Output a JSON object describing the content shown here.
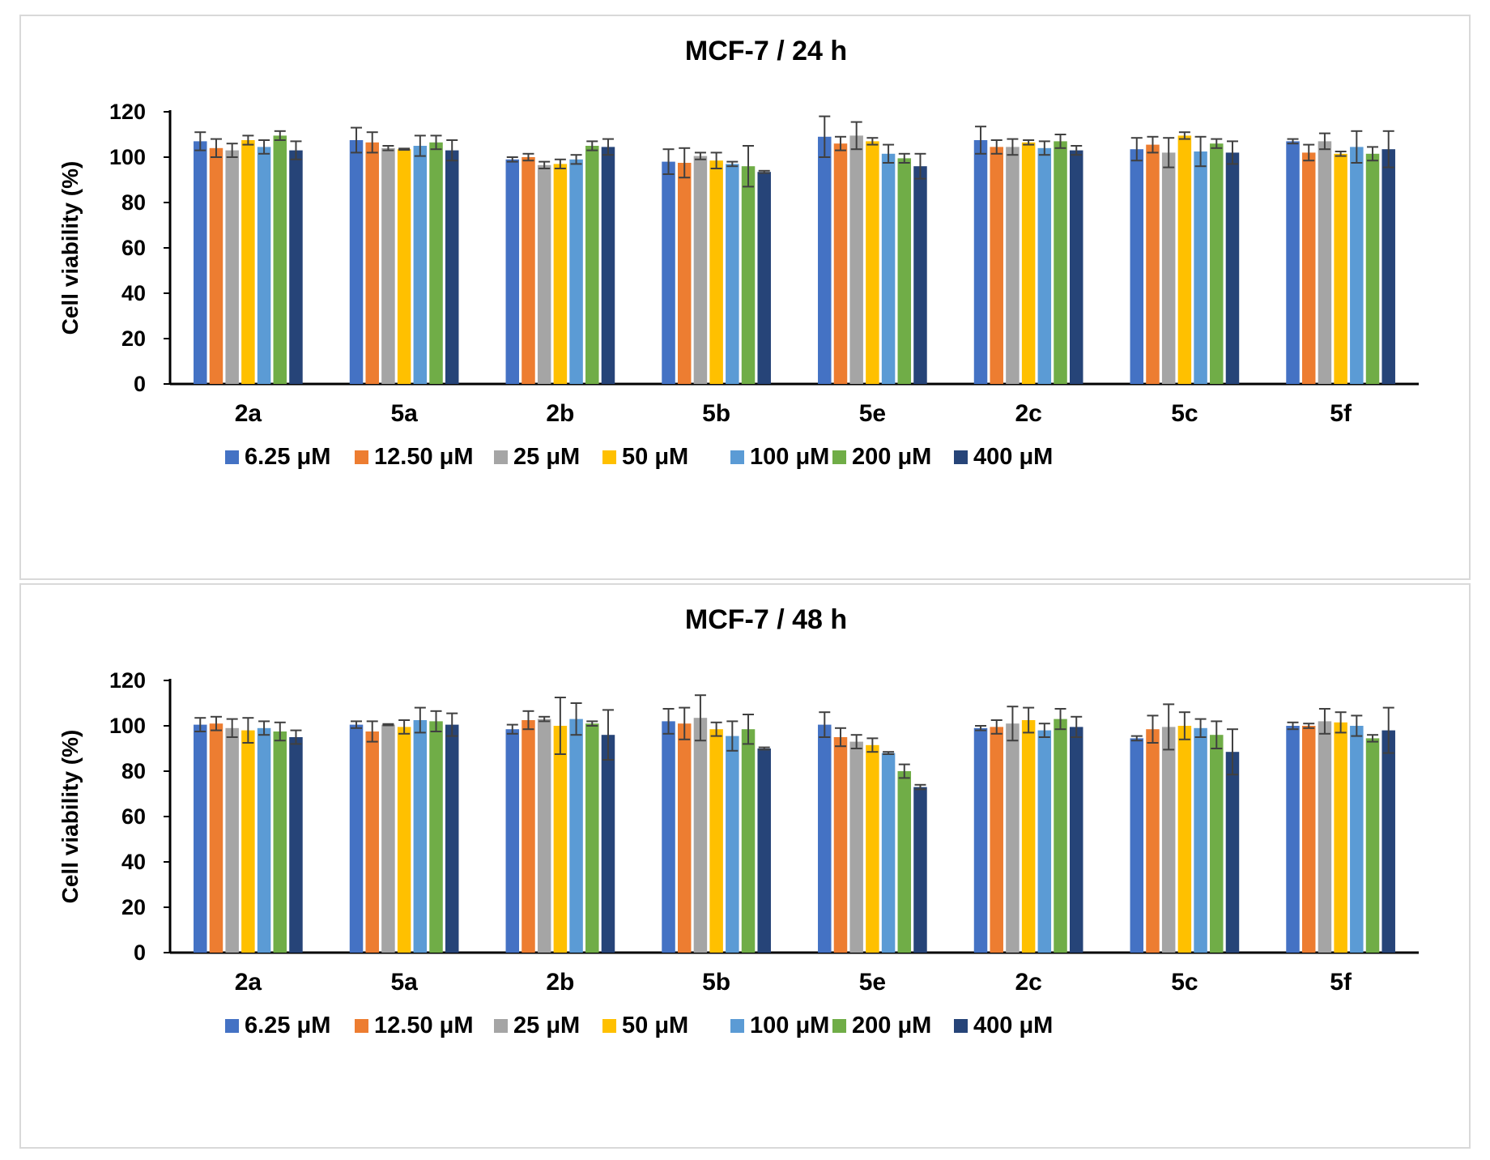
{
  "chart_data": [
    {
      "type": "bar",
      "title": "MCF-7 / 24 h",
      "xlabel": "",
      "ylabel": "Cell viability (%)",
      "ylim": [
        0,
        120
      ],
      "yticks": [
        0,
        20,
        40,
        60,
        80,
        100,
        120
      ],
      "categories": [
        "2a",
        "5a",
        "2b",
        "5b",
        "5e",
        "2c",
        "5c",
        "5f"
      ],
      "legend_position": "bottom",
      "series": [
        {
          "name": "6.25 μM",
          "color": "#4472c4",
          "values": [
            107,
            107.5,
            99,
            98,
            109,
            107.5,
            103.5,
            107
          ],
          "errors": [
            4,
            5.5,
            1,
            5.5,
            9,
            6,
            5,
            1
          ]
        },
        {
          "name": "12.50 μM",
          "color": "#ed7d31",
          "values": [
            104,
            106.5,
            100,
            97.5,
            106,
            104.5,
            105.5,
            102
          ],
          "errors": [
            4,
            4.5,
            1.5,
            6.5,
            3,
            3,
            3.5,
            3.5
          ]
        },
        {
          "name": "25 μM",
          "color": "#a5a5a5",
          "values": [
            103,
            104,
            96.5,
            100.5,
            109.5,
            104.5,
            102,
            107
          ],
          "errors": [
            3,
            1,
            1.5,
            1.5,
            6,
            3.5,
            6.5,
            3.5
          ]
        },
        {
          "name": "50 μM",
          "color": "#ffc000",
          "values": [
            107.5,
            103.5,
            97,
            98.5,
            107,
            106.5,
            109.5,
            101.5
          ],
          "errors": [
            2,
            0.3,
            2,
            3.5,
            1.5,
            1,
            1.5,
            1
          ]
        },
        {
          "name": "100 μM",
          "color": "#5b9bd5",
          "values": [
            104.5,
            105,
            99,
            97,
            101.5,
            104,
            102.5,
            104.5
          ],
          "errors": [
            3,
            4.5,
            2,
            1,
            4,
            3,
            6.5,
            7
          ]
        },
        {
          "name": "200 μM",
          "color": "#70ad47",
          "values": [
            109.5,
            106.5,
            105,
            96,
            99.5,
            107,
            106,
            101.5
          ],
          "errors": [
            2,
            3,
            2,
            9,
            2,
            3,
            2,
            3
          ]
        },
        {
          "name": "400 μM",
          "color": "#264478",
          "values": [
            103,
            103,
            104.5,
            93.5,
            96,
            103,
            102,
            103.5
          ],
          "errors": [
            4,
            4.5,
            3.5,
            0.5,
            5.5,
            2,
            5,
            8
          ]
        }
      ]
    },
    {
      "type": "bar",
      "title": "MCF-7 / 48 h",
      "xlabel": "",
      "ylabel": "Cell viability (%)",
      "ylim": [
        0,
        120
      ],
      "yticks": [
        0,
        20,
        40,
        60,
        80,
        100,
        120
      ],
      "categories": [
        "2a",
        "5a",
        "2b",
        "5b",
        "5e",
        "2c",
        "5c",
        "5f"
      ],
      "legend_position": "bottom",
      "series": [
        {
          "name": "6.25 μM",
          "color": "#4472c4",
          "values": [
            100.5,
            100.5,
            98.5,
            102,
            100.5,
            99,
            94.5,
            100
          ],
          "errors": [
            3,
            1.5,
            2,
            5.5,
            5.5,
            1,
            1,
            1.5
          ]
        },
        {
          "name": "12.50 μM",
          "color": "#ed7d31",
          "values": [
            101,
            97.5,
            102.5,
            101,
            95,
            99.5,
            98.5,
            100
          ],
          "errors": [
            3,
            4.5,
            4,
            7,
            4,
            3,
            6,
            1
          ]
        },
        {
          "name": "25 μM",
          "color": "#a5a5a5",
          "values": [
            99,
            100.5,
            103,
            103.5,
            93,
            101,
            99.5,
            102
          ],
          "errors": [
            4,
            0.3,
            1,
            10,
            3,
            7.5,
            10,
            5.5
          ]
        },
        {
          "name": "50 μM",
          "color": "#ffc000",
          "values": [
            98,
            99.5,
            100,
            98.5,
            91.5,
            102.5,
            100,
            101.5
          ],
          "errors": [
            5.5,
            3,
            12.5,
            3,
            3,
            5.5,
            6,
            4.5
          ]
        },
        {
          "name": "100 μM",
          "color": "#5b9bd5",
          "values": [
            99,
            102.5,
            103,
            95.5,
            88,
            98,
            99,
            100
          ],
          "errors": [
            3,
            5.5,
            7,
            6.5,
            0.5,
            3,
            4,
            4.5
          ]
        },
        {
          "name": "200 μM",
          "color": "#70ad47",
          "values": [
            97.5,
            102,
            101,
            98.5,
            80,
            103,
            96,
            94.5
          ],
          "errors": [
            4,
            4.5,
            1,
            6.5,
            3,
            4.5,
            6,
            1.5
          ]
        },
        {
          "name": "400 μM",
          "color": "#264478",
          "values": [
            95,
            100.5,
            96,
            90,
            73,
            99.5,
            88.5,
            98
          ],
          "errors": [
            3,
            5,
            11,
            0.5,
            1,
            4.5,
            10,
            10
          ]
        }
      ]
    }
  ]
}
